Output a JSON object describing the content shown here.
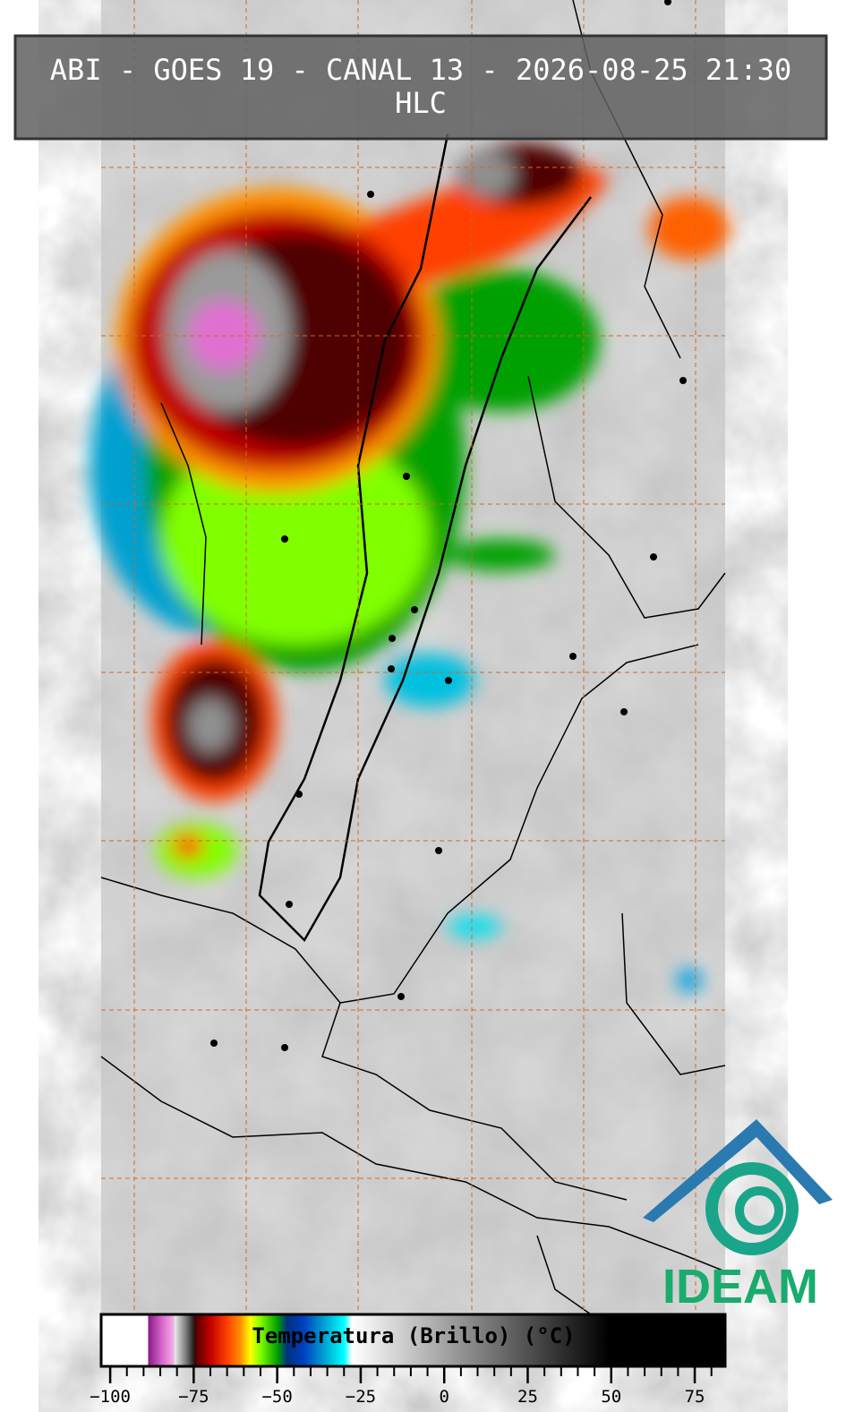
{
  "header": {
    "title": "ABI - GOES 19 - CANAL 13 - 2026-08-25 21:30",
    "subtitle": "HLC"
  },
  "colorbar": {
    "label": "Temperatura (Brillo) (°C)",
    "range": [
      -102.7,
      84.1
    ],
    "ticks": [
      {
        "value": -100,
        "label": "−100"
      },
      {
        "value": -75,
        "label": "−75"
      },
      {
        "value": -50,
        "label": "−50"
      },
      {
        "value": -25,
        "label": "−25"
      },
      0,
      25,
      50,
      75
    ],
    "minor_ticks": [
      -100,
      -95,
      -90,
      -85,
      -80,
      -75,
      -70,
      -65,
      -60,
      -55,
      -50,
      -45,
      -40,
      -35,
      -30,
      -25,
      -20,
      -15,
      -10,
      -5,
      0,
      5,
      10,
      15,
      20,
      25,
      30,
      35,
      40,
      45,
      50,
      55,
      60,
      65,
      70,
      75,
      80
    ],
    "stops": [
      {
        "value": -102.7,
        "color": "#ffffff"
      },
      {
        "value": -88.7,
        "color": "#ffffff"
      },
      {
        "value": -88.6,
        "color": "#8a1a8a"
      },
      {
        "value": -84,
        "color": "#e070d0"
      },
      {
        "value": -81,
        "color": "#f0b0e8"
      },
      {
        "value": -80.6,
        "color": "#e8e8e8"
      },
      {
        "value": -77,
        "color": "#707070"
      },
      {
        "value": -75,
        "color": "#202020"
      },
      {
        "value": -74.5,
        "color": "#500000"
      },
      {
        "value": -70,
        "color": "#c00000"
      },
      {
        "value": -65,
        "color": "#ff4000"
      },
      {
        "value": -61,
        "color": "#ff9000"
      },
      {
        "value": -58,
        "color": "#ffff00"
      },
      {
        "value": -55,
        "color": "#80ff00"
      },
      {
        "value": -50,
        "color": "#00a000"
      },
      {
        "value": -47,
        "color": "#003080"
      },
      {
        "value": -42,
        "color": "#0040c0"
      },
      {
        "value": -36,
        "color": "#00a0d0"
      },
      {
        "value": -30,
        "color": "#00ffff"
      },
      {
        "value": -27.6,
        "color": "#ffffff"
      },
      {
        "value": 49.3,
        "color": "#000000"
      },
      {
        "value": 84.1,
        "color": "#000000"
      }
    ]
  },
  "logo": {
    "text": "IDEAM"
  }
}
